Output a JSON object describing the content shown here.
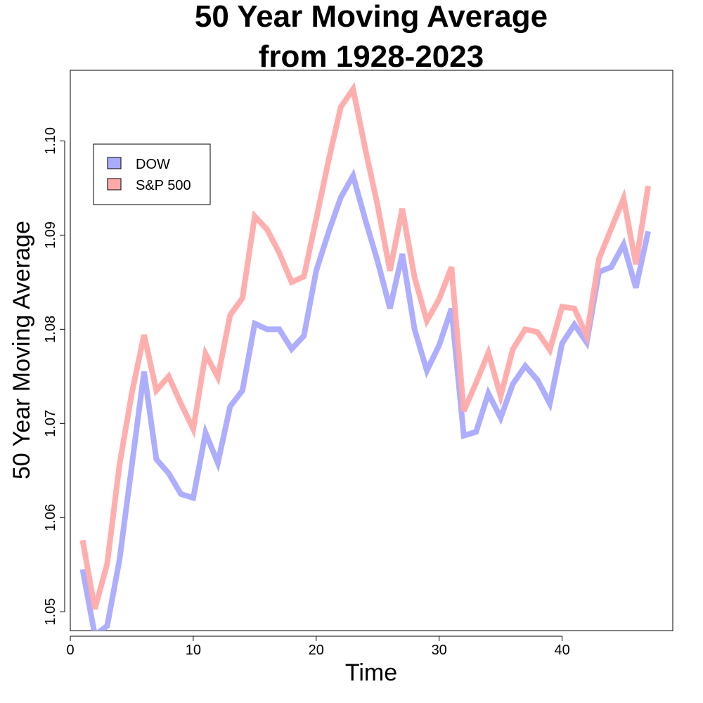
{
  "chart_data": {
    "type": "line",
    "title": "50 Year Moving Average",
    "subtitle": "from 1928-2023",
    "xlabel": "Time",
    "ylabel": "50 Year Moving Average",
    "xlim": [
      0,
      49
    ],
    "ylim": [
      1.048,
      1.1075
    ],
    "x_ticks": [
      0,
      10,
      20,
      30,
      40
    ],
    "x_tick_labels": [
      "0",
      "10",
      "20",
      "30",
      "40"
    ],
    "y_ticks": [
      1.05,
      1.06,
      1.07,
      1.08,
      1.09,
      1.1
    ],
    "y_tick_labels": [
      "1.05",
      "1.06",
      "1.07",
      "1.08",
      "1.09",
      "1.10"
    ],
    "grid": false,
    "legend_position": "top-left",
    "x": [
      1,
      2,
      3,
      4,
      5,
      6,
      7,
      8,
      9,
      10,
      11,
      12,
      13,
      14,
      15,
      16,
      17,
      18,
      19,
      20,
      21,
      22,
      23,
      24,
      25,
      26,
      27,
      28,
      29,
      30,
      31,
      32,
      33,
      34,
      35,
      36,
      37,
      38,
      39,
      40,
      41,
      42,
      43,
      44,
      45,
      46,
      47
    ],
    "series": [
      {
        "name": "DOW",
        "color": "#aaaaff",
        "values": [
          1.0545,
          1.0475,
          1.0485,
          1.0555,
          1.0655,
          1.0755,
          1.0662,
          1.0647,
          1.0625,
          1.0621,
          1.069,
          1.0658,
          1.0718,
          1.0735,
          1.0806,
          1.08,
          1.08,
          1.0779,
          1.0793,
          1.0862,
          1.0903,
          1.094,
          1.0963,
          1.0916,
          1.0872,
          1.0822,
          1.088,
          1.08,
          1.0756,
          1.0783,
          1.0822,
          1.0687,
          1.0691,
          1.0732,
          1.0706,
          1.0742,
          1.0761,
          1.0746,
          1.0721,
          1.0785,
          1.0805,
          1.0786,
          1.0861,
          1.0866,
          1.089,
          1.0844,
          1.0904
        ]
      },
      {
        "name": "S&P 500",
        "color": "#ffaaaa",
        "values": [
          1.0576,
          1.0503,
          1.0551,
          1.0656,
          1.0732,
          1.0794,
          1.0735,
          1.075,
          1.0721,
          1.0694,
          1.0774,
          1.0749,
          1.0815,
          1.0833,
          1.092,
          1.0906,
          1.0881,
          1.085,
          1.0856,
          1.0917,
          1.0979,
          1.1036,
          1.1055,
          1.0991,
          1.0931,
          1.0862,
          1.0928,
          1.0855,
          1.0809,
          1.0832,
          1.0866,
          1.0713,
          1.0743,
          1.0775,
          1.0729,
          1.0779,
          1.08,
          1.0797,
          1.0778,
          1.0824,
          1.0822,
          1.0793,
          1.0875,
          1.0907,
          1.0939,
          1.0869,
          1.0952
        ]
      }
    ]
  }
}
